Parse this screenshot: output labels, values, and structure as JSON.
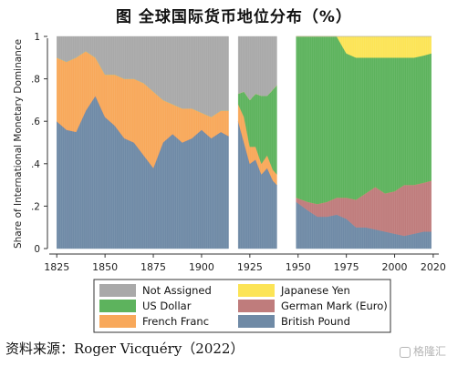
{
  "figure_title": "图  全球国际货币地位分布（%）",
  "source_text": "资料来源：Roger Vicquéry（2022）",
  "watermark_text": "格隆汇",
  "colors": {
    "Not Assigned": "#a9a9a9",
    "US Dollar": "#5db35d",
    "French Franc": "#f8a85a",
    "Japanese Yen": "#fce456",
    "German Mark (Euro)": "#bf7c7c",
    "British Pound": "#6f8aa6"
  },
  "chart_data": {
    "type": "area",
    "stacked": true,
    "title": "",
    "ylabel": "Share of International Monetary Dominance",
    "xlabel": "",
    "xlim": [
      1823,
      2021
    ],
    "ylim": [
      0,
      1
    ],
    "xticks": [
      1825,
      1850,
      1875,
      1900,
      1925,
      1950,
      1975,
      2000,
      2020
    ],
    "yticks": [
      0,
      0.2,
      0.4,
      0.6,
      0.8,
      1
    ],
    "ytick_labels": [
      "0",
      ".2",
      ".4",
      ".6",
      ".8",
      "1"
    ],
    "gaps": [
      [
        1915,
        1918
      ],
      [
        1940,
        1948
      ]
    ],
    "legend_position": "bottom",
    "legend_order": [
      "Not Assigned",
      "Japanese Yen",
      "US Dollar",
      "German Mark (Euro)",
      "French Franc",
      "British Pound"
    ],
    "stack_order": [
      "British Pound",
      "German Mark (Euro)",
      "French Franc",
      "US Dollar",
      "Japanese Yen",
      "Not Assigned"
    ],
    "x": [
      1825,
      1830,
      1835,
      1840,
      1845,
      1850,
      1855,
      1860,
      1865,
      1870,
      1875,
      1880,
      1885,
      1890,
      1895,
      1900,
      1905,
      1910,
      1914,
      1919,
      1922,
      1925,
      1928,
      1931,
      1934,
      1937,
      1939,
      1949,
      1955,
      1960,
      1965,
      1970,
      1975,
      1980,
      1985,
      1990,
      1995,
      2000,
      2005,
      2010,
      2015,
      2019
    ],
    "series": [
      {
        "name": "British Pound",
        "values": [
          0.6,
          0.56,
          0.55,
          0.65,
          0.72,
          0.62,
          0.58,
          0.52,
          0.5,
          0.44,
          0.38,
          0.5,
          0.54,
          0.5,
          0.52,
          0.56,
          0.52,
          0.55,
          0.53,
          0.6,
          0.5,
          0.4,
          0.42,
          0.35,
          0.38,
          0.32,
          0.3,
          0.22,
          0.18,
          0.15,
          0.15,
          0.16,
          0.14,
          0.1,
          0.1,
          0.09,
          0.08,
          0.07,
          0.06,
          0.07,
          0.08,
          0.08
        ]
      },
      {
        "name": "German Mark (Euro)",
        "values": [
          0.0,
          0.0,
          0.0,
          0.0,
          0.0,
          0.0,
          0.0,
          0.0,
          0.0,
          0.0,
          0.0,
          0.0,
          0.0,
          0.0,
          0.0,
          0.0,
          0.0,
          0.0,
          0.0,
          0.0,
          0.0,
          0.0,
          0.0,
          0.0,
          0.0,
          0.0,
          0.0,
          0.02,
          0.04,
          0.06,
          0.07,
          0.08,
          0.1,
          0.13,
          0.16,
          0.2,
          0.18,
          0.2,
          0.24,
          0.23,
          0.23,
          0.24
        ]
      },
      {
        "name": "French Franc",
        "values": [
          0.3,
          0.32,
          0.35,
          0.28,
          0.18,
          0.2,
          0.24,
          0.28,
          0.3,
          0.34,
          0.36,
          0.2,
          0.14,
          0.16,
          0.14,
          0.08,
          0.1,
          0.1,
          0.12,
          0.08,
          0.12,
          0.08,
          0.06,
          0.05,
          0.06,
          0.05,
          0.05,
          0.0,
          0.0,
          0.0,
          0.0,
          0.0,
          0.0,
          0.0,
          0.0,
          0.0,
          0.0,
          0.0,
          0.0,
          0.0,
          0.0,
          0.0
        ]
      },
      {
        "name": "US Dollar",
        "values": [
          0.0,
          0.0,
          0.0,
          0.0,
          0.0,
          0.0,
          0.0,
          0.0,
          0.0,
          0.0,
          0.0,
          0.0,
          0.0,
          0.0,
          0.0,
          0.0,
          0.0,
          0.0,
          0.0,
          0.05,
          0.12,
          0.22,
          0.25,
          0.32,
          0.28,
          0.38,
          0.42,
          0.76,
          0.78,
          0.79,
          0.78,
          0.76,
          0.68,
          0.67,
          0.64,
          0.61,
          0.64,
          0.63,
          0.6,
          0.6,
          0.6,
          0.6
        ]
      },
      {
        "name": "Japanese Yen",
        "values": [
          0.0,
          0.0,
          0.0,
          0.0,
          0.0,
          0.0,
          0.0,
          0.0,
          0.0,
          0.0,
          0.0,
          0.0,
          0.0,
          0.0,
          0.0,
          0.0,
          0.0,
          0.0,
          0.0,
          0.0,
          0.0,
          0.0,
          0.0,
          0.0,
          0.0,
          0.0,
          0.0,
          0.0,
          0.0,
          0.0,
          0.0,
          0.0,
          0.08,
          0.1,
          0.1,
          0.1,
          0.1,
          0.1,
          0.1,
          0.1,
          0.09,
          0.08
        ]
      },
      {
        "name": "Not Assigned",
        "values": [
          0.1,
          0.12,
          0.1,
          0.07,
          0.1,
          0.18,
          0.18,
          0.2,
          0.2,
          0.22,
          0.26,
          0.3,
          0.32,
          0.34,
          0.34,
          0.36,
          0.38,
          0.35,
          0.35,
          0.27,
          0.26,
          0.3,
          0.27,
          0.28,
          0.28,
          0.25,
          0.23,
          0.0,
          0.0,
          0.0,
          0.0,
          0.0,
          0.0,
          0.0,
          0.0,
          0.0,
          0.0,
          0.0,
          0.0,
          0.0,
          0.0,
          0.0
        ]
      }
    ]
  }
}
